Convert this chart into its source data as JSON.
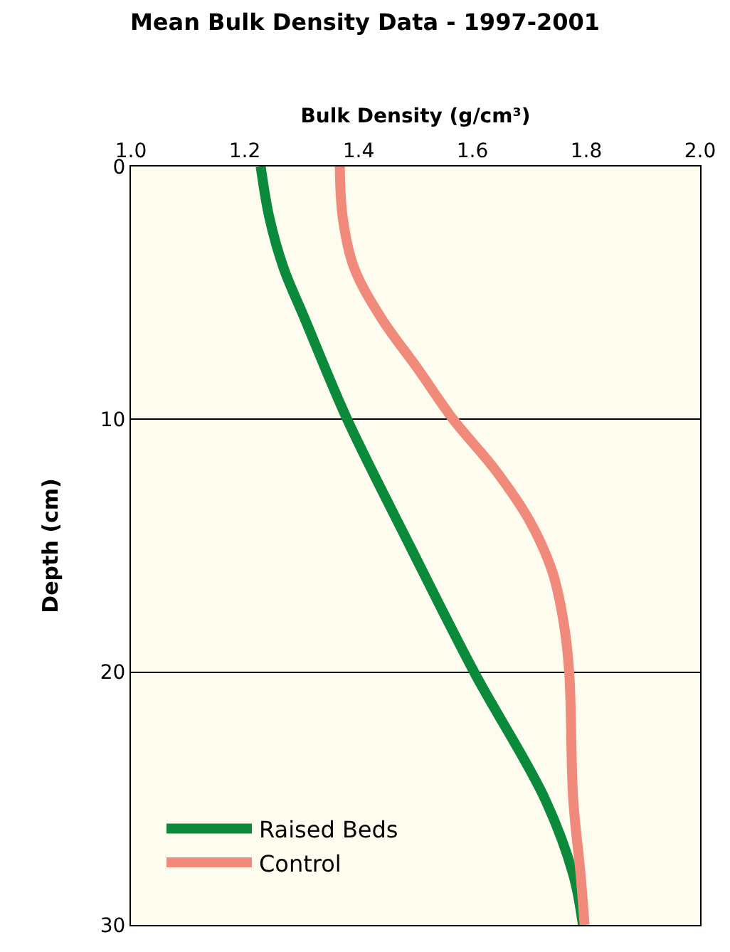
{
  "chart_data": {
    "type": "line",
    "title": "Mean Bulk Density Data - 1997-2001",
    "xlabel": "Bulk Density (g/cm³)",
    "ylabel": "Depth (cm)",
    "xlim": [
      1.0,
      2.0
    ],
    "xticks": [
      {
        "value": 1.0,
        "label": "1.0"
      },
      1.2,
      1.4,
      1.6,
      1.8,
      {
        "value": 2.0,
        "label": "2.0"
      }
    ],
    "ylim": [
      30,
      0
    ],
    "yticks": [
      0,
      10,
      20,
      30
    ],
    "grid": "y",
    "legend": "bottom left",
    "marker": "none",
    "line_style": "solid",
    "series": [
      {
        "name": "Raised Beds",
        "color": "#0a8a3a",
        "x": [
          1.228,
          1.243,
          1.268,
          1.305,
          1.38,
          1.49,
          1.603,
          1.727,
          1.777,
          1.794
        ],
        "values": [
          0,
          2,
          4,
          6,
          10,
          15,
          20,
          25,
          28,
          30
        ]
      },
      {
        "name": "Control",
        "color": "#f08a7a",
        "x": [
          1.367,
          1.372,
          1.392,
          1.44,
          1.504,
          1.566,
          1.64,
          1.7,
          1.74,
          1.76,
          1.77,
          1.777,
          1.79,
          1.797
        ],
        "values": [
          0,
          2,
          4,
          6,
          8,
          10,
          12,
          14,
          16,
          18,
          20,
          25,
          28,
          30
        ]
      }
    ]
  }
}
